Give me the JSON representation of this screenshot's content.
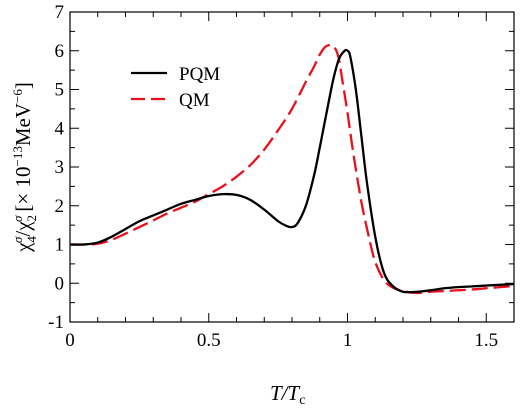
{
  "chart_data": {
    "type": "line",
    "title": "",
    "xlabel": {
      "main": "T/T",
      "sub": "c"
    },
    "ylabel": {
      "main": "χ",
      "sub1": "4",
      "sup1": "σ",
      "mid": "/χ",
      "sub2": "2",
      "sup2": "σ",
      "units": "[× 10",
      "exp": "−13",
      "units_end": "MeV",
      "exp2": "−6",
      "close": "]"
    },
    "xlim": [
      0,
      1.6
    ],
    "ylim": [
      -1,
      7
    ],
    "x_ticks": [
      0,
      0.5,
      1,
      1.5
    ],
    "x_tick_labels": [
      "0",
      "0.5",
      "1",
      "1.5"
    ],
    "y_ticks": [
      -1,
      0,
      1,
      2,
      3,
      4,
      5,
      6,
      7
    ],
    "y_tick_labels": [
      "-1",
      "0",
      "1",
      "2",
      "3",
      "4",
      "5",
      "6",
      "7"
    ],
    "grid": false,
    "legend_position": "top-left",
    "series": [
      {
        "name": "PQM",
        "color": "#000000",
        "style": "solid",
        "x": [
          0,
          0.05,
          0.1,
          0.15,
          0.2,
          0.25,
          0.3,
          0.35,
          0.4,
          0.45,
          0.5,
          0.55,
          0.6,
          0.65,
          0.7,
          0.75,
          0.78,
          0.8,
          0.82,
          0.85,
          0.88,
          0.9,
          0.93,
          0.95,
          0.97,
          0.99,
          1.0,
          1.01,
          1.03,
          1.05,
          1.07,
          1.1,
          1.13,
          1.16,
          1.2,
          1.25,
          1.3,
          1.35,
          1.4,
          1.45,
          1.5,
          1.55,
          1.6
        ],
        "y": [
          1.0,
          1.0,
          1.05,
          1.2,
          1.4,
          1.6,
          1.75,
          1.9,
          2.05,
          2.15,
          2.25,
          2.3,
          2.28,
          2.15,
          1.9,
          1.6,
          1.48,
          1.45,
          1.55,
          2.0,
          2.8,
          3.5,
          4.6,
          5.3,
          5.8,
          6.0,
          6.0,
          5.85,
          5.0,
          3.8,
          2.6,
          1.2,
          0.3,
          -0.05,
          -0.22,
          -0.22,
          -0.18,
          -0.13,
          -0.1,
          -0.08,
          -0.06,
          -0.04,
          -0.02
        ]
      },
      {
        "name": "QM",
        "color": "#e8101c",
        "style": "dashed",
        "x": [
          0,
          0.05,
          0.1,
          0.15,
          0.2,
          0.25,
          0.3,
          0.35,
          0.4,
          0.45,
          0.5,
          0.55,
          0.6,
          0.65,
          0.7,
          0.75,
          0.8,
          0.85,
          0.88,
          0.9,
          0.92,
          0.94,
          0.95,
          0.96,
          0.97,
          0.98,
          1.0,
          1.02,
          1.05,
          1.08,
          1.1,
          1.13,
          1.16,
          1.2,
          1.25,
          1.3,
          1.35,
          1.4,
          1.45,
          1.5,
          1.55,
          1.6
        ],
        "y": [
          1.0,
          1.0,
          1.02,
          1.12,
          1.28,
          1.45,
          1.62,
          1.8,
          1.95,
          2.1,
          2.3,
          2.5,
          2.75,
          3.05,
          3.45,
          3.95,
          4.5,
          5.2,
          5.6,
          5.9,
          6.1,
          6.15,
          6.1,
          6.0,
          5.75,
          5.3,
          4.4,
          3.4,
          2.1,
          1.1,
          0.55,
          0.1,
          -0.1,
          -0.2,
          -0.25,
          -0.22,
          -0.2,
          -0.18,
          -0.16,
          -0.13,
          -0.1,
          -0.07
        ]
      }
    ]
  }
}
